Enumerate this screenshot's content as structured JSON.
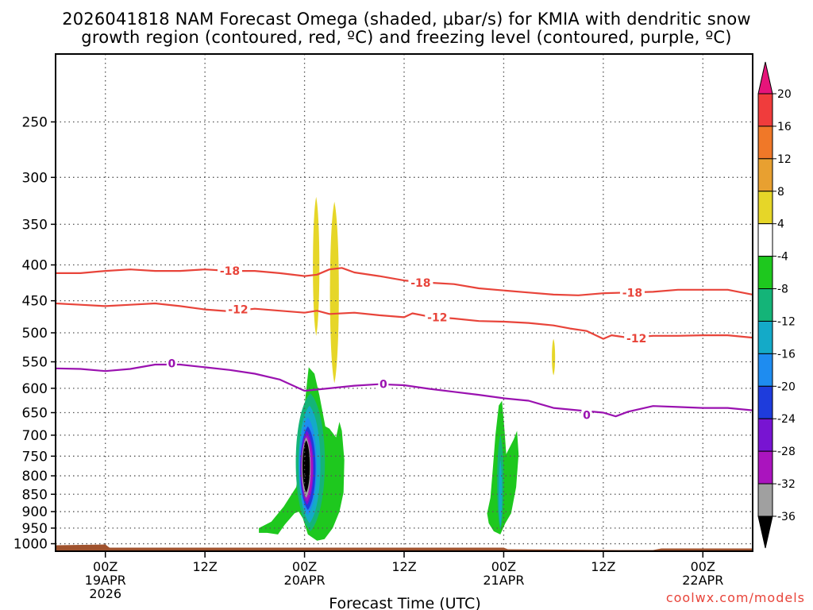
{
  "title": {
    "line1": "2026041818 NAM Forecast Omega (shaded, μbar/s) for KMIA with dendritic snow",
    "line2": "growth region (contoured, red, ºC) and freezing level (contoured, purple, ºC)"
  },
  "credit": "coolwx.com/models",
  "chart_data": {
    "type": "time-height cross section",
    "xlabel": "Forecast Time (UTC)",
    "ylabel": "",
    "x_ticks": [
      {
        "lines": [
          "00Z",
          "19APR",
          "2026"
        ],
        "hours": 6
      },
      {
        "lines": [
          "12Z"
        ],
        "hours": 18
      },
      {
        "lines": [
          "00Z",
          "20APR"
        ],
        "hours": 30
      },
      {
        "lines": [
          "12Z"
        ],
        "hours": 42
      },
      {
        "lines": [
          "00Z",
          "21APR"
        ],
        "hours": 54
      },
      {
        "lines": [
          "12Z"
        ],
        "hours": 66
      },
      {
        "lines": [
          "00Z",
          "22APR"
        ],
        "hours": 78
      }
    ],
    "xlim_hours": [
      0,
      84
    ],
    "y_ticks": [
      "250",
      "300",
      "350",
      "400",
      "450",
      "500",
      "550",
      "600",
      "650",
      "700",
      "750",
      "800",
      "850",
      "900",
      "950",
      "1000"
    ],
    "ylim_hpa": [
      200,
      1025
    ],
    "y_scale": "log-pressure (inverted)",
    "grid": true,
    "colorbar": {
      "labels": [
        "20",
        "16",
        "12",
        "8",
        "4",
        "-4",
        "-8",
        "-12",
        "-16",
        "-20",
        "-24",
        "-28",
        "-32",
        "-36"
      ],
      "colors": [
        "#f03c3c",
        "#f07828",
        "#e8a030",
        "#e6d628",
        "#ffffff",
        "#1ec81e",
        "#14b478",
        "#14aac8",
        "#1e8cf0",
        "#1e3cdc",
        "#7814d2",
        "#aa14be",
        "#a0a0a0"
      ],
      "top_arrow_color": "#e6147a",
      "bottom_arrow_color": "#000000"
    },
    "contours": [
      {
        "label": "-18",
        "color": "#e8443a",
        "points": [
          [
            0,
            411
          ],
          [
            3,
            411
          ],
          [
            6,
            408
          ],
          [
            9,
            406
          ],
          [
            12,
            408
          ],
          [
            15,
            408
          ],
          [
            18,
            406
          ],
          [
            21,
            408
          ],
          [
            24,
            408
          ],
          [
            27,
            411
          ],
          [
            30,
            415
          ],
          [
            31.5,
            413
          ],
          [
            33,
            406
          ],
          [
            34.5,
            404
          ],
          [
            36,
            410
          ],
          [
            39,
            415
          ],
          [
            42,
            421
          ],
          [
            45,
            424
          ],
          [
            48,
            426
          ],
          [
            51,
            432
          ],
          [
            54,
            435
          ],
          [
            57,
            438
          ],
          [
            60,
            441
          ],
          [
            63,
            442
          ],
          [
            66,
            439
          ],
          [
            69,
            438
          ],
          [
            72,
            437
          ],
          [
            75,
            434
          ],
          [
            78,
            434
          ],
          [
            81,
            434
          ],
          [
            84,
            441
          ]
        ],
        "label_at": [
          [
            21,
            408
          ],
          [
            44,
            424
          ],
          [
            69.5,
            438
          ]
        ]
      },
      {
        "label": "-12",
        "color": "#e8443a",
        "points": [
          [
            0,
            454
          ],
          [
            3,
            456
          ],
          [
            6,
            458
          ],
          [
            9,
            456
          ],
          [
            12,
            454
          ],
          [
            15,
            458
          ],
          [
            18,
            463
          ],
          [
            21,
            466
          ],
          [
            24,
            462
          ],
          [
            27,
            465
          ],
          [
            30,
            468
          ],
          [
            31.5,
            465
          ],
          [
            33,
            470
          ],
          [
            36,
            468
          ],
          [
            39,
            472
          ],
          [
            42,
            475
          ],
          [
            43,
            469
          ],
          [
            45,
            474
          ],
          [
            48,
            477
          ],
          [
            51,
            481
          ],
          [
            54,
            482
          ],
          [
            57,
            484
          ],
          [
            60,
            488
          ],
          [
            62,
            493
          ],
          [
            64,
            497
          ],
          [
            66,
            510
          ],
          [
            67,
            504
          ],
          [
            69,
            508
          ],
          [
            72,
            505
          ],
          [
            75,
            505
          ],
          [
            78,
            504
          ],
          [
            81,
            504
          ],
          [
            84,
            508
          ]
        ],
        "label_at": [
          [
            22,
            463
          ],
          [
            46,
            475
          ],
          [
            70,
            509
          ]
        ]
      },
      {
        "label": "0",
        "color": "#9a12b0",
        "points": [
          [
            0,
            562
          ],
          [
            3,
            563
          ],
          [
            6,
            567
          ],
          [
            9,
            563
          ],
          [
            12,
            555
          ],
          [
            15,
            555
          ],
          [
            18,
            560
          ],
          [
            21,
            565
          ],
          [
            24,
            572
          ],
          [
            27,
            583
          ],
          [
            30,
            605
          ],
          [
            33,
            600
          ],
          [
            36,
            595
          ],
          [
            39,
            592
          ],
          [
            42,
            594
          ],
          [
            45,
            601
          ],
          [
            48,
            607
          ],
          [
            51,
            613
          ],
          [
            54,
            620
          ],
          [
            57,
            625
          ],
          [
            60,
            640
          ],
          [
            63,
            645
          ],
          [
            66,
            650
          ],
          [
            67.5,
            658
          ],
          [
            69,
            648
          ],
          [
            72,
            636
          ],
          [
            75,
            638
          ],
          [
            78,
            640
          ],
          [
            81,
            640
          ],
          [
            84,
            645
          ]
        ],
        "label_at": [
          [
            14,
            553
          ],
          [
            39.5,
            592
          ],
          [
            64,
            655
          ]
        ]
      }
    ],
    "omega_regions": [
      {
        "value_range": "4 to 8",
        "color": "#e6d628",
        "center": [
          31.4,
          410
        ],
        "half_width_hours": 0.4,
        "p_top": 320,
        "p_bottom": 505
      },
      {
        "value_range": "4 to 8",
        "color": "#e6d628",
        "center": [
          33.6,
          450
        ],
        "half_width_hours": 0.55,
        "p_top": 325,
        "p_bottom": 590
      },
      {
        "value_range": "4 to 8",
        "color": "#e6d628",
        "center": [
          60.0,
          540
        ],
        "half_width_hours": 0.2,
        "p_top": 510,
        "p_bottom": 575
      },
      {
        "value_range": "-4 to -8",
        "color": "#1ec81e",
        "shape": "polygon",
        "points": [
          [
            24.5,
            950
          ],
          [
            26,
            930
          ],
          [
            27.5,
            885
          ],
          [
            29,
            830
          ],
          [
            29.5,
            760
          ],
          [
            29.8,
            690
          ],
          [
            30.1,
            620
          ],
          [
            30.5,
            560
          ],
          [
            31.2,
            572
          ],
          [
            31.8,
            615
          ],
          [
            32.5,
            680
          ],
          [
            33,
            685
          ],
          [
            33.8,
            705
          ],
          [
            34.2,
            670
          ],
          [
            34.5,
            690
          ],
          [
            34.8,
            760
          ],
          [
            34.7,
            845
          ],
          [
            34.2,
            900
          ],
          [
            33.4,
            950
          ],
          [
            32.4,
            985
          ],
          [
            31.5,
            990
          ],
          [
            30.4,
            970
          ],
          [
            29.8,
            920
          ],
          [
            29.3,
            900
          ],
          [
            28.8,
            905
          ],
          [
            27.6,
            940
          ],
          [
            26.8,
            970
          ],
          [
            25.5,
            965
          ],
          [
            24.5,
            965
          ]
        ]
      },
      {
        "value_range": "-8 to -12",
        "color": "#14b478",
        "center": [
          30.7,
          790
        ],
        "half_width_hours": 1.8,
        "p_top": 610,
        "p_bottom": 960
      },
      {
        "value_range": "-12 to -16",
        "color": "#14aac8",
        "center": [
          30.6,
          775
        ],
        "half_width_hours": 1.35,
        "p_top": 635,
        "p_bottom": 935
      },
      {
        "value_range": "-16 to -20",
        "color": "#1e8cf0",
        "center": [
          30.4,
          765
        ],
        "half_width_hours": 1.1,
        "p_top": 660,
        "p_bottom": 910
      },
      {
        "value_range": "-20 to -24",
        "color": "#1e3cdc",
        "center": [
          30.4,
          758
        ],
        "half_width_hours": 0.95,
        "p_top": 680,
        "p_bottom": 895
      },
      {
        "value_range": "-24 to -28",
        "color": "#7814d2",
        "center": [
          30.3,
          752
        ],
        "half_width_hours": 0.8,
        "p_top": 690,
        "p_bottom": 880
      },
      {
        "value_range": "-28 to -32",
        "color": "#aa14be",
        "center": [
          30.3,
          748
        ],
        "half_width_hours": 0.7,
        "p_top": 700,
        "p_bottom": 870
      },
      {
        "value_range": "-32 to -36",
        "color": "#a0a0a0",
        "center": [
          30.2,
          745
        ],
        "half_width_hours": 0.55,
        "p_top": 705,
        "p_bottom": 860
      },
      {
        "value_range": "< -36",
        "color": "#000000",
        "center": [
          30.2,
          745
        ],
        "half_width_hours": 0.45,
        "p_top": 712,
        "p_bottom": 845
      },
      {
        "value_range": "-4 to -8",
        "color": "#1ec81e",
        "shape": "polygon",
        "points": [
          [
            52,
            905
          ],
          [
            52.4,
            860
          ],
          [
            52.7,
            780
          ],
          [
            53,
            700
          ],
          [
            53.4,
            635
          ],
          [
            53.8,
            625
          ],
          [
            54.1,
            690
          ],
          [
            54.3,
            745
          ],
          [
            55.2,
            710
          ],
          [
            55.6,
            690
          ],
          [
            55.8,
            745
          ],
          [
            55.5,
            830
          ],
          [
            54.9,
            905
          ],
          [
            54.2,
            935
          ],
          [
            53.6,
            970
          ],
          [
            52.8,
            960
          ],
          [
            52.2,
            935
          ]
        ]
      },
      {
        "value_range": "-8 to -12",
        "color": "#14b478",
        "center": [
          53.6,
          820
        ],
        "half_width_hours": 0.4,
        "p_top": 700,
        "p_bottom": 955
      },
      {
        "value_range": "-12 to -16",
        "color": "#14aac8",
        "center": [
          53.6,
          845
        ],
        "half_width_hours": 0.2,
        "p_top": 760,
        "p_bottom": 945
      }
    ],
    "terrain": {
      "color": "#a0522d",
      "label": ""
    }
  }
}
